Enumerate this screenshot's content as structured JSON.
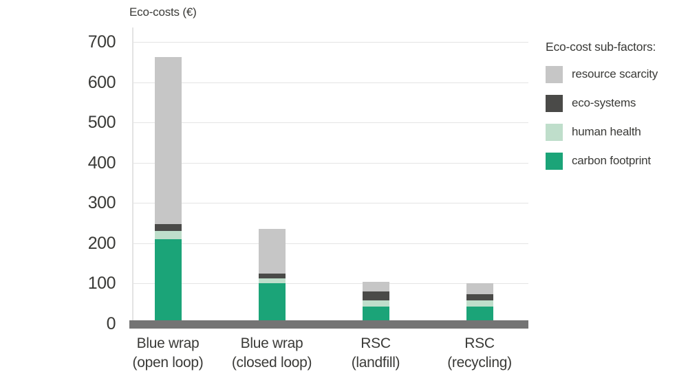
{
  "chart_data": {
    "type": "bar",
    "stacked": true,
    "title": "Eco-costs (€)",
    "categories": [
      "Blue wrap\n(open loop)",
      "Blue wrap\n(closed loop)",
      "RSC\n(landfill)",
      "RSC\n(recycling)"
    ],
    "series": [
      {
        "name": "carbon footprint",
        "color": "#1ba478",
        "values": [
          210,
          100,
          42,
          42
        ]
      },
      {
        "name": "human health",
        "color": "#bfdecb",
        "values": [
          20,
          12,
          16,
          16
        ]
      },
      {
        "name": "eco-systems",
        "color": "#4a4a48",
        "values": [
          17,
          13,
          22,
          16
        ]
      },
      {
        "name": "resource scarcity",
        "color": "#c6c6c6",
        "values": [
          415,
          110,
          25,
          26
        ]
      }
    ],
    "series_order": "bottom-to-top",
    "stack_totals": [
      662,
      235,
      105,
      100
    ],
    "ylim": [
      0,
      700
    ],
    "ytick_step": 100,
    "yticks": [
      0,
      100,
      200,
      300,
      400,
      500,
      600,
      700
    ],
    "grid": "horizontal",
    "legend_title": "Eco-cost sub-factors:",
    "legend_position": "right",
    "legend_order_top_to_bottom": [
      "resource scarcity",
      "eco-systems",
      "human health",
      "carbon footprint"
    ]
  },
  "colors": {
    "background": "#ffffff",
    "axis_baseline": "#747474",
    "gridline": "#e4e4e4",
    "text": "#3a3a37"
  }
}
